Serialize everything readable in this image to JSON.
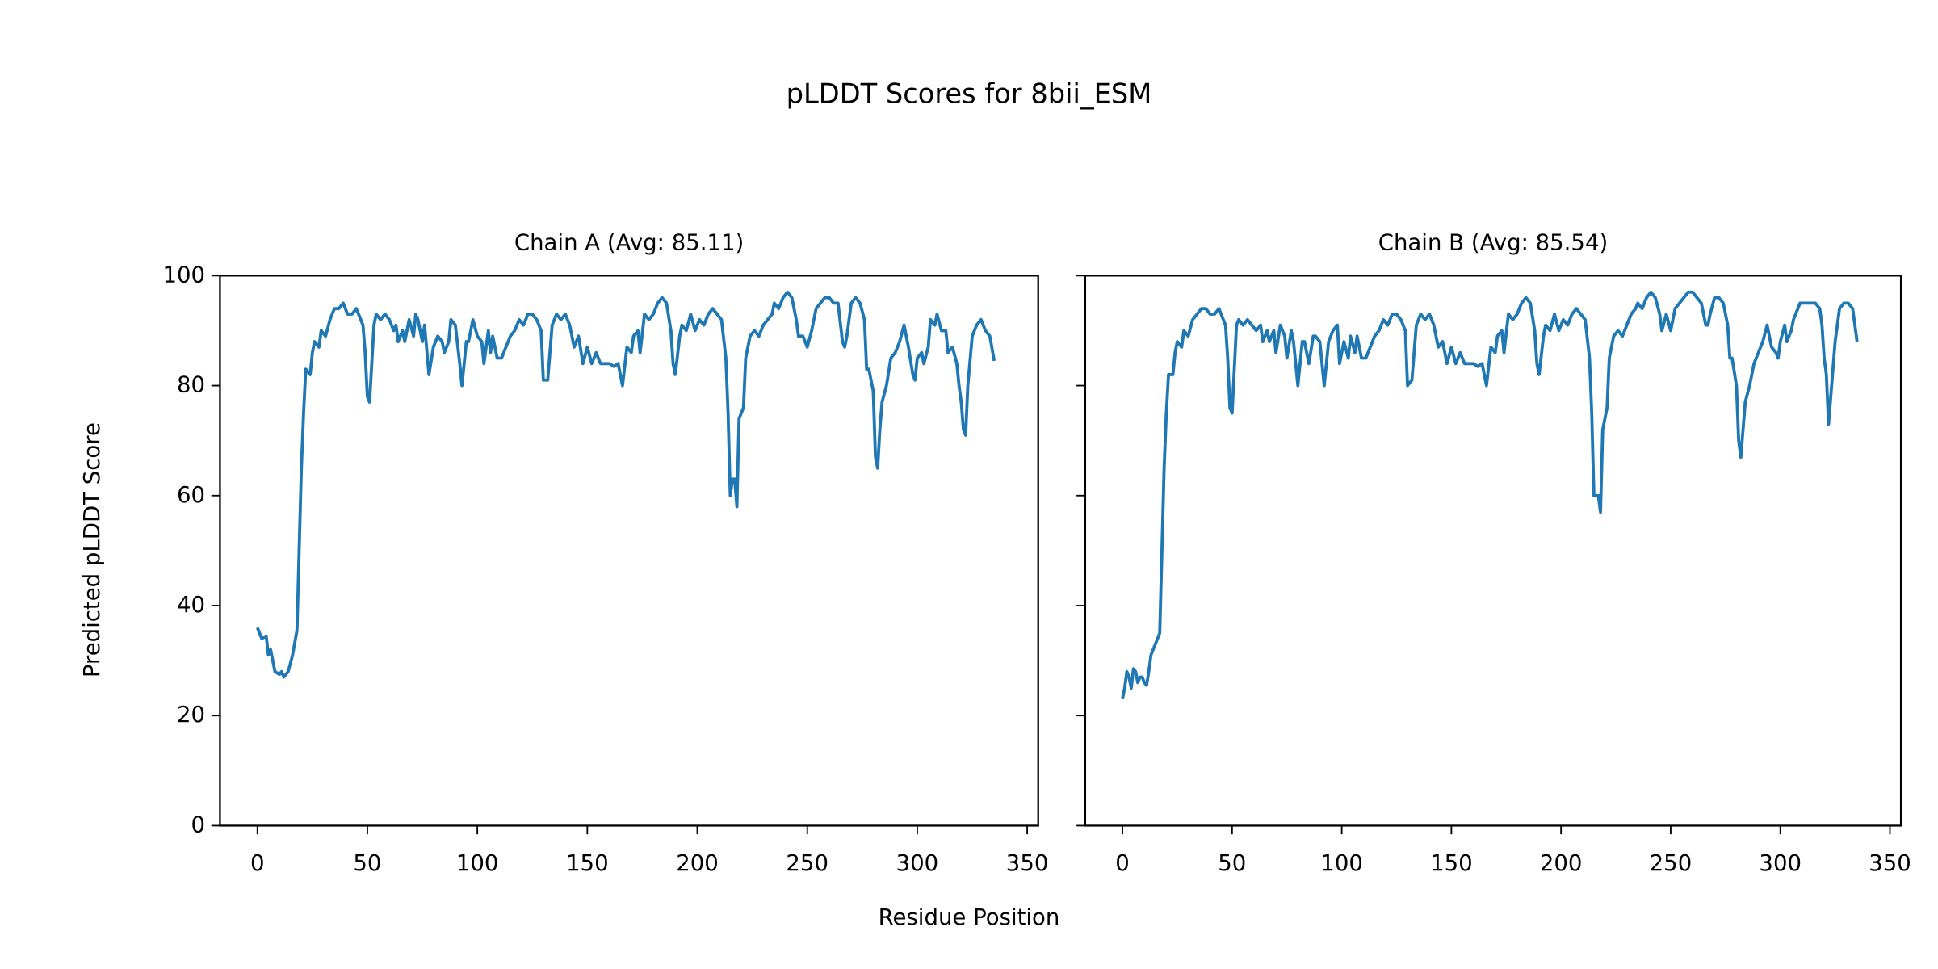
{
  "figure": {
    "title": "pLDDT Scores for 8bii_ESM",
    "xlabel": "Residue Position",
    "ylabel": "Predicted pLDDT Score",
    "sharey": true
  },
  "chart_data": [
    {
      "type": "line",
      "title": "Chain A (Avg: 85.11)",
      "x": [
        0,
        2,
        4,
        5,
        6,
        8,
        10,
        11,
        12,
        14,
        16,
        18,
        20,
        21,
        22,
        24,
        25,
        26,
        28,
        29,
        31,
        33,
        35,
        37,
        39,
        41,
        43,
        45,
        47,
        48,
        49,
        50,
        51,
        53,
        54,
        56,
        58,
        60,
        62,
        63,
        64,
        66,
        67,
        69,
        71,
        72,
        73,
        75,
        76,
        78,
        80,
        82,
        84,
        85,
        87,
        88,
        90,
        92,
        93,
        95,
        96,
        98,
        100,
        102,
        103,
        105,
        106,
        107,
        109,
        111,
        113,
        115,
        117,
        119,
        121,
        123,
        125,
        127,
        129,
        130,
        132,
        134,
        136,
        138,
        140,
        142,
        144,
        146,
        148,
        150,
        152,
        154,
        156,
        158,
        160,
        162,
        164,
        166,
        168,
        170,
        171,
        173,
        174,
        176,
        178,
        180,
        182,
        184,
        186,
        188,
        189,
        190,
        192,
        193,
        195,
        197,
        199,
        201,
        203,
        205,
        207,
        209,
        211,
        213,
        214,
        215,
        216,
        217,
        218,
        219,
        221,
        222,
        224,
        226,
        228,
        230,
        232,
        234,
        235,
        237,
        239,
        241,
        243,
        245,
        246,
        248,
        250,
        252,
        254,
        256,
        258,
        260,
        262,
        264,
        266,
        267,
        268,
        270,
        272,
        274,
        276,
        277,
        278,
        280,
        281,
        282,
        283,
        284,
        286,
        288,
        290,
        292,
        294,
        296,
        298,
        299,
        300,
        302,
        303,
        305,
        306,
        308,
        309,
        311,
        313,
        314,
        316,
        318,
        319,
        320,
        321,
        322,
        323,
        325,
        327,
        329,
        331,
        333,
        335
      ],
      "series": [
        {
          "color": "#1f77b4",
          "values": [
            36,
            34,
            34.5,
            31,
            32,
            28,
            27.5,
            28,
            27,
            28,
            31,
            35.5,
            65,
            75,
            83,
            82,
            86,
            88,
            87,
            90,
            89,
            92,
            94,
            94,
            95,
            93,
            93,
            94,
            92,
            91,
            86,
            78,
            77,
            91,
            93,
            92,
            93,
            92,
            90,
            91,
            88,
            90,
            88,
            92,
            89,
            93,
            92,
            88,
            91,
            82,
            87,
            89,
            88,
            86,
            88,
            92,
            91,
            84,
            80,
            88,
            88,
            92,
            89,
            88,
            84,
            90,
            86,
            89,
            85,
            85,
            87,
            89,
            90,
            92,
            91,
            93,
            93,
            92,
            90,
            81,
            81,
            91,
            93,
            92,
            93,
            91,
            87,
            89,
            84,
            87,
            84,
            86,
            84,
            84,
            84,
            83.5,
            84,
            80,
            87,
            86,
            89,
            90,
            86,
            93,
            92,
            93,
            95,
            96,
            95,
            90,
            84,
            82,
            89,
            91,
            90,
            93,
            90,
            92,
            91,
            93,
            94,
            93,
            92,
            85,
            75,
            60,
            63,
            63,
            58,
            74,
            76,
            85,
            89,
            90,
            89,
            91,
            92,
            93,
            95,
            94,
            96,
            97,
            96,
            92,
            89,
            89,
            87,
            90,
            94,
            95,
            96,
            96,
            95,
            95,
            88,
            87,
            89,
            95,
            96,
            95,
            92,
            83,
            83,
            79,
            67,
            65,
            72,
            77,
            80,
            85,
            86,
            88,
            91,
            87,
            82,
            81,
            85,
            86,
            84,
            87,
            92,
            91,
            93,
            90,
            90,
            86,
            87,
            84,
            80,
            77,
            72,
            71,
            80,
            89,
            91,
            92,
            90,
            89,
            84.5
          ]
        }
      ],
      "xlim": [
        -17,
        355
      ],
      "ylim": [
        0,
        100
      ],
      "xticks": [
        0,
        50,
        100,
        150,
        200,
        250,
        300,
        350
      ],
      "yticks": [
        0,
        20,
        40,
        60,
        80,
        100
      ]
    },
    {
      "type": "line",
      "title": "Chain B (Avg: 85.54)",
      "x": [
        0,
        1,
        2,
        3,
        4,
        5,
        6,
        7,
        8,
        9,
        10,
        11,
        12,
        13,
        15,
        17,
        19,
        20,
        21,
        23,
        24,
        25,
        27,
        28,
        30,
        32,
        34,
        36,
        38,
        40,
        42,
        44,
        46,
        47,
        48,
        49,
        50,
        52,
        53,
        55,
        57,
        59,
        61,
        63,
        64,
        66,
        67,
        69,
        70,
        72,
        74,
        75,
        77,
        78,
        80,
        82,
        83,
        85,
        87,
        88,
        90,
        91,
        92,
        94,
        96,
        98,
        99,
        101,
        103,
        104,
        106,
        107,
        109,
        111,
        113,
        115,
        117,
        119,
        121,
        123,
        125,
        127,
        129,
        130,
        132,
        134,
        136,
        138,
        140,
        142,
        144,
        146,
        148,
        150,
        152,
        154,
        156,
        158,
        160,
        162,
        164,
        166,
        168,
        170,
        171,
        173,
        174,
        176,
        178,
        180,
        182,
        184,
        186,
        188,
        189,
        190,
        192,
        193,
        195,
        197,
        199,
        201,
        203,
        205,
        207,
        209,
        211,
        213,
        214,
        215,
        216,
        217,
        218,
        219,
        221,
        222,
        224,
        226,
        228,
        230,
        232,
        234,
        235,
        237,
        239,
        241,
        243,
        245,
        246,
        248,
        250,
        252,
        254,
        256,
        258,
        260,
        262,
        264,
        266,
        267,
        268,
        270,
        272,
        274,
        276,
        277,
        278,
        280,
        281,
        282,
        283,
        284,
        286,
        288,
        290,
        292,
        294,
        296,
        298,
        299,
        300,
        302,
        303,
        305,
        306,
        308,
        309,
        311,
        313,
        314,
        316,
        318,
        319,
        320,
        321,
        322,
        323,
        325,
        327,
        329,
        331,
        333,
        335
      ],
      "series": [
        {
          "color": "#1f77b4",
          "values": [
            23,
            25,
            28,
            27,
            25,
            28.5,
            28,
            26,
            27,
            27,
            26,
            25.5,
            28,
            31,
            33,
            35,
            65,
            75,
            82,
            82,
            86,
            88,
            87,
            90,
            89,
            92,
            93,
            94,
            94,
            93,
            93,
            94,
            92,
            91,
            85,
            76,
            75,
            91,
            92,
            91,
            92,
            91,
            90,
            91,
            88,
            90,
            88,
            90,
            86,
            91,
            89,
            85,
            90,
            88,
            80,
            88,
            88,
            84,
            89,
            89,
            88,
            84,
            80,
            88,
            90,
            91,
            84,
            88,
            85,
            89,
            86,
            89,
            85,
            85,
            87,
            89,
            90,
            92,
            91,
            93,
            93,
            92,
            90,
            80,
            81,
            91,
            93,
            92,
            93,
            91,
            87,
            88,
            84,
            87,
            84,
            86,
            84,
            84,
            84,
            83.5,
            84,
            80,
            87,
            86,
            89,
            90,
            86,
            93,
            92,
            93,
            95,
            96,
            95,
            90,
            84,
            82,
            89,
            91,
            90,
            93,
            90,
            92,
            91,
            93,
            94,
            93,
            92,
            85,
            75,
            60,
            60,
            60,
            57,
            72,
            76,
            85,
            89,
            90,
            89,
            91,
            93,
            94,
            95,
            94,
            96,
            97,
            96,
            93,
            90,
            93,
            90,
            94,
            95,
            96,
            97,
            97,
            96,
            95,
            91,
            91,
            93,
            96,
            96,
            95,
            91,
            85,
            85,
            80,
            70,
            67,
            72,
            77,
            80,
            84,
            86,
            88,
            91,
            87,
            86,
            85,
            88,
            91,
            88,
            90,
            92,
            94,
            95,
            95,
            95,
            95,
            95,
            94,
            91,
            85,
            82,
            73,
            78,
            88,
            94,
            95,
            95,
            94,
            88
          ]
        }
      ],
      "xlim": [
        -17,
        355
      ],
      "ylim": [
        0,
        100
      ],
      "xticks": [
        0,
        50,
        100,
        150,
        200,
        250,
        300,
        350
      ]
    }
  ]
}
